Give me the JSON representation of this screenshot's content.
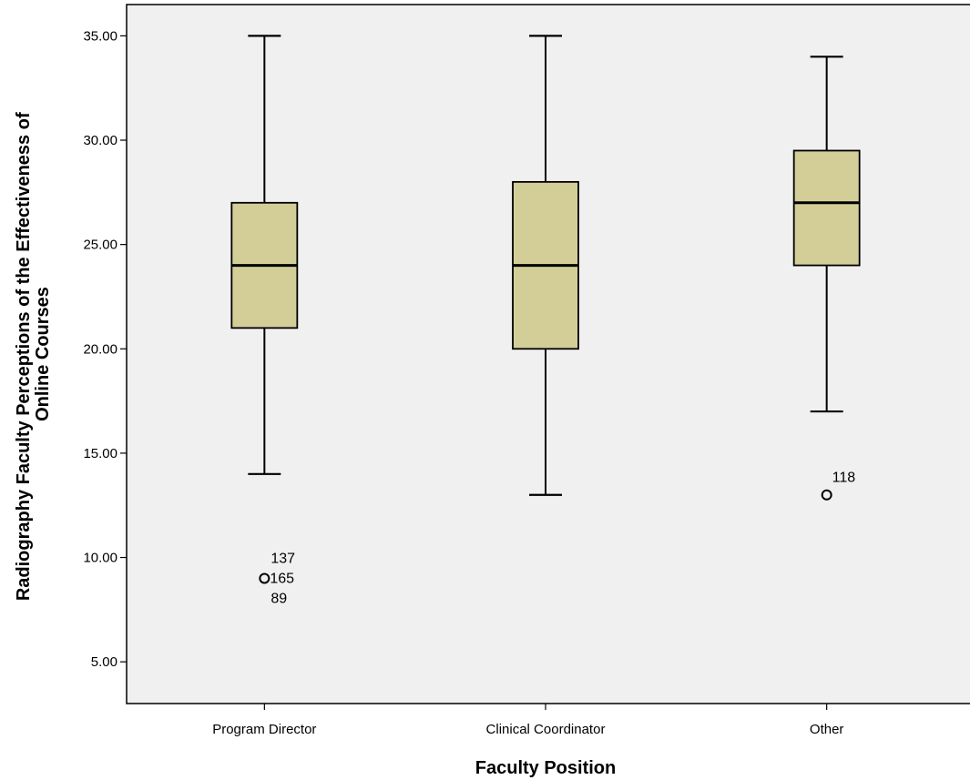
{
  "chart_data": {
    "type": "boxplot",
    "title": "",
    "xlabel": "Faculty Position",
    "ylabel_lines": [
      "Radiography Faculty Perceptions of the Effectiveness of",
      "Online Courses"
    ],
    "ylim": [
      3.0,
      36.5
    ],
    "yticks": [
      "5.00",
      "10.00",
      "15.00",
      "20.00",
      "25.00",
      "30.00",
      "35.00"
    ],
    "grid": false,
    "categories": [
      "Program Director",
      "Clinical Coordinator",
      "Other"
    ],
    "boxes": [
      {
        "name": "Program Director",
        "whisker_low": 14,
        "q1": 21,
        "median": 24,
        "q3": 27,
        "whisker_high": 35,
        "outliers": [
          {
            "value": 9,
            "labels": [
              "137",
              "165",
              "89"
            ]
          }
        ]
      },
      {
        "name": "Clinical Coordinator",
        "whisker_low": 13,
        "q1": 20,
        "median": 24,
        "q3": 28,
        "whisker_high": 35,
        "outliers": []
      },
      {
        "name": "Other",
        "whisker_low": 17,
        "q1": 24,
        "median": 27,
        "q3": 29.5,
        "whisker_high": 34,
        "outliers": [
          {
            "value": 13,
            "labels": [
              "118"
            ]
          }
        ]
      }
    ],
    "colors": {
      "plot_background": "#f0f0f0",
      "box_fill": "#d3ce97",
      "stroke": "#000000"
    }
  }
}
